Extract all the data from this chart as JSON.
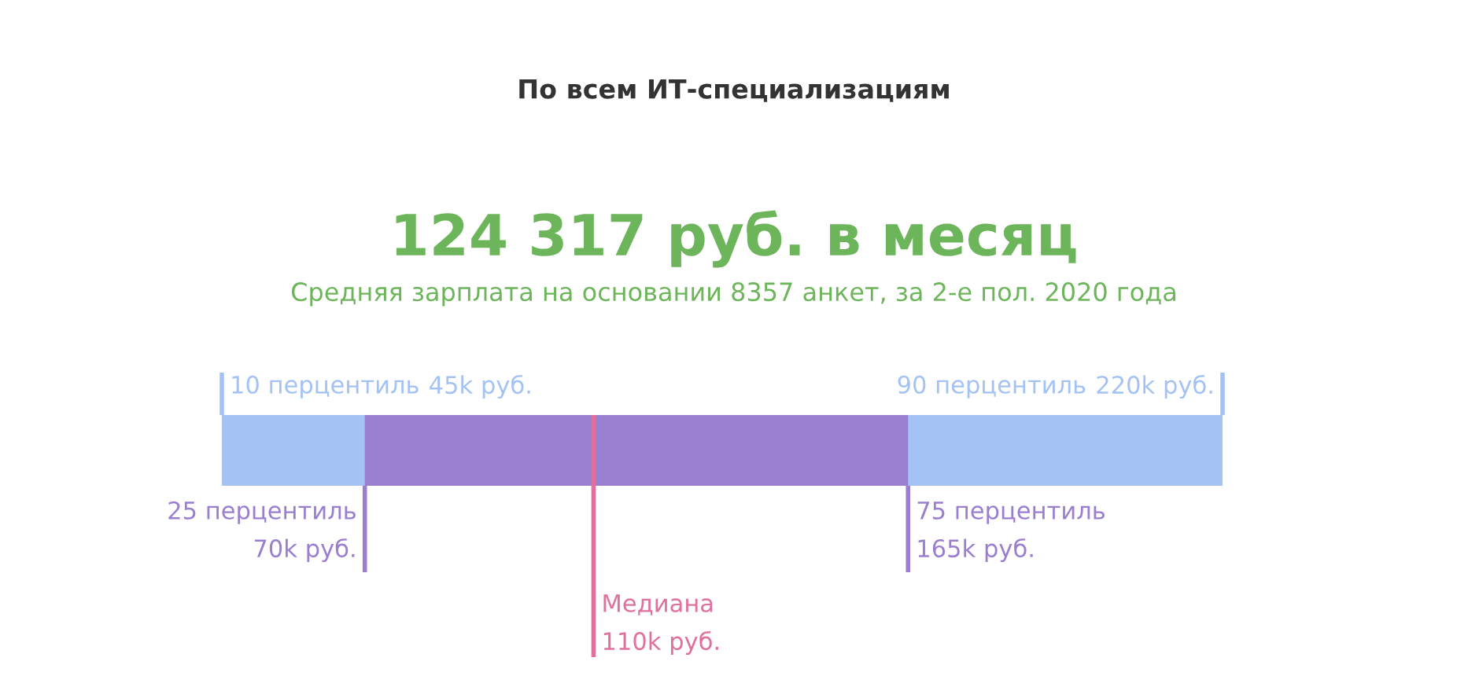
{
  "chart_data": {
    "type": "other",
    "title": "По всем ИТ-специализациям",
    "subtitle": "124 317 руб. в месяц",
    "categories": [
      "10 перцентиль",
      "25 перцентиль",
      "Медиана",
      "75 перцентиль",
      "90 перцентиль"
    ],
    "values": [
      45,
      70,
      110,
      165,
      220
    ],
    "value_labels": [
      "45k руб.",
      "70k руб.",
      "110k руб.",
      "165k руб.",
      "220k руб."
    ],
    "colors": [
      "#a4c2f4",
      "#9a7fd1",
      "#e0709e",
      "#9a7fd1",
      "#a4c2f4"
    ],
    "annotations": [
      "Средняя зарплата на основании 8357 анкет, за 2-е пол. 2020 года"
    ]
  }
}
